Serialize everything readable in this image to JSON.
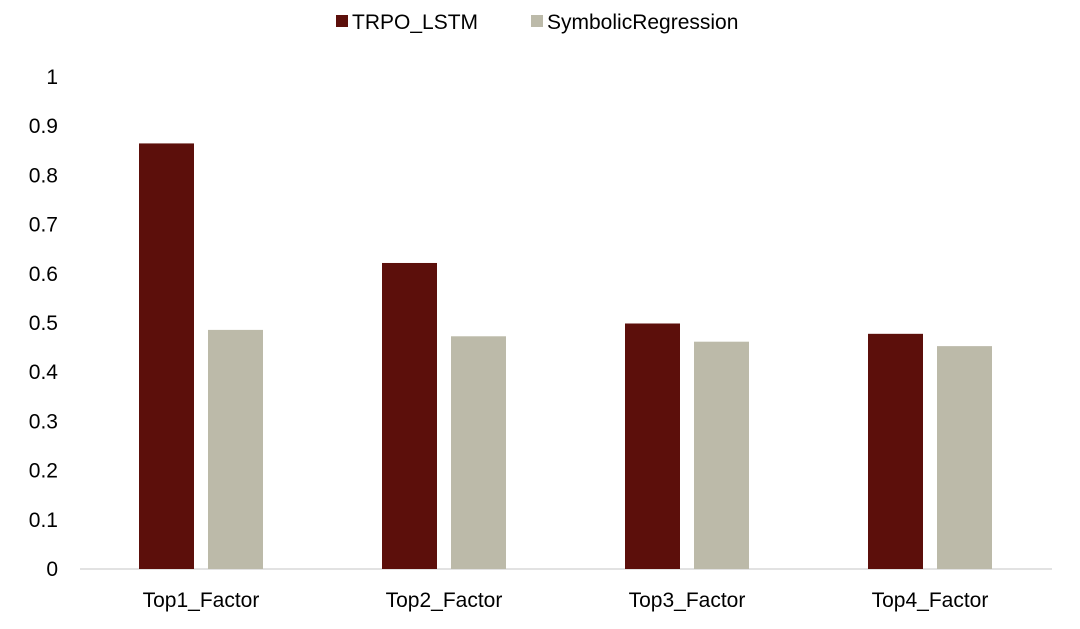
{
  "chart_data": {
    "type": "bar",
    "title": "",
    "xlabel": "",
    "ylabel": "",
    "categories": [
      "Top1_Factor",
      "Top2_Factor",
      "Top3_Factor",
      "Top4_Factor"
    ],
    "series": [
      {
        "name": "TRPO_LSTM",
        "color": "#5c0f0b",
        "values": [
          0.865,
          0.622,
          0.499,
          0.478
        ]
      },
      {
        "name": "SymbolicRegression",
        "color": "#bcbaa9",
        "values": [
          0.486,
          0.473,
          0.462,
          0.453
        ]
      }
    ],
    "ylim": [
      0,
      1
    ],
    "yticks": [
      0,
      0.1,
      0.2,
      0.3,
      0.4,
      0.5,
      0.6,
      0.7,
      0.8,
      0.9,
      1
    ],
    "ytick_labels": [
      "0",
      "0.1",
      "0.2",
      "0.3",
      "0.4",
      "0.5",
      "0.6",
      "0.7",
      "0.8",
      "0.9",
      "1"
    ],
    "grid": false,
    "legend_position": "top-center",
    "axis_color": "#d9d9d9"
  }
}
